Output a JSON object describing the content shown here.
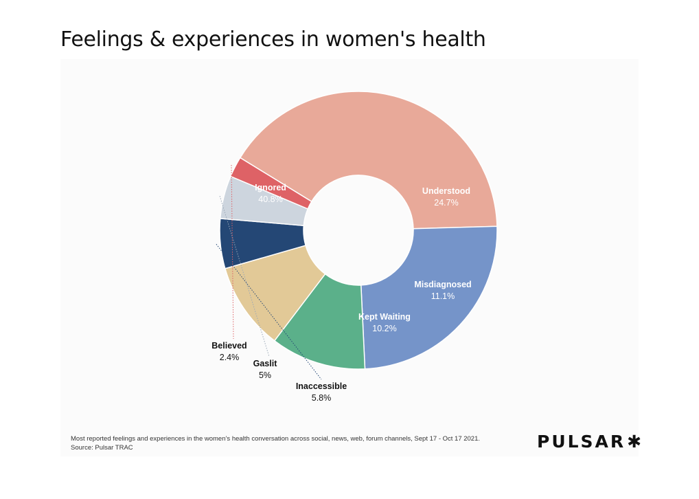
{
  "header": {
    "title": "Feelings & experiences in women's health"
  },
  "chart_data": {
    "type": "pie",
    "variant": "donut",
    "categories": [
      "Ignored",
      "Understood",
      "Misdiagnosed",
      "Kept Waiting",
      "Inaccessible",
      "Gaslit",
      "Believed"
    ],
    "values": [
      40.8,
      24.7,
      11.1,
      10.2,
      5.8,
      5.0,
      2.4
    ],
    "value_labels": [
      "40.8%",
      "24.7%",
      "11.1%",
      "10.2%",
      "5.8%",
      "5%",
      "2.4%"
    ],
    "colors": [
      "#e8a999",
      "#7594c9",
      "#5bb08a",
      "#e2c997",
      "#244775",
      "#cdd5de",
      "#de6266"
    ],
    "label_colors": [
      "#ffffff",
      "#ffffff",
      "#ffffff",
      "#ffffff",
      "#111111",
      "#111111",
      "#111111"
    ],
    "start_angle_deg": -148.5,
    "title": "",
    "legend": "none"
  },
  "footer": {
    "caption": "Most reported feelings and experiences in the women’s health conversation across social, news, web, forum channels, Sept 17 - Oct 17 2021.",
    "source": "Source: Pulsar TRAC",
    "brand_name": "PULSAR",
    "brand_mark": "✱"
  }
}
